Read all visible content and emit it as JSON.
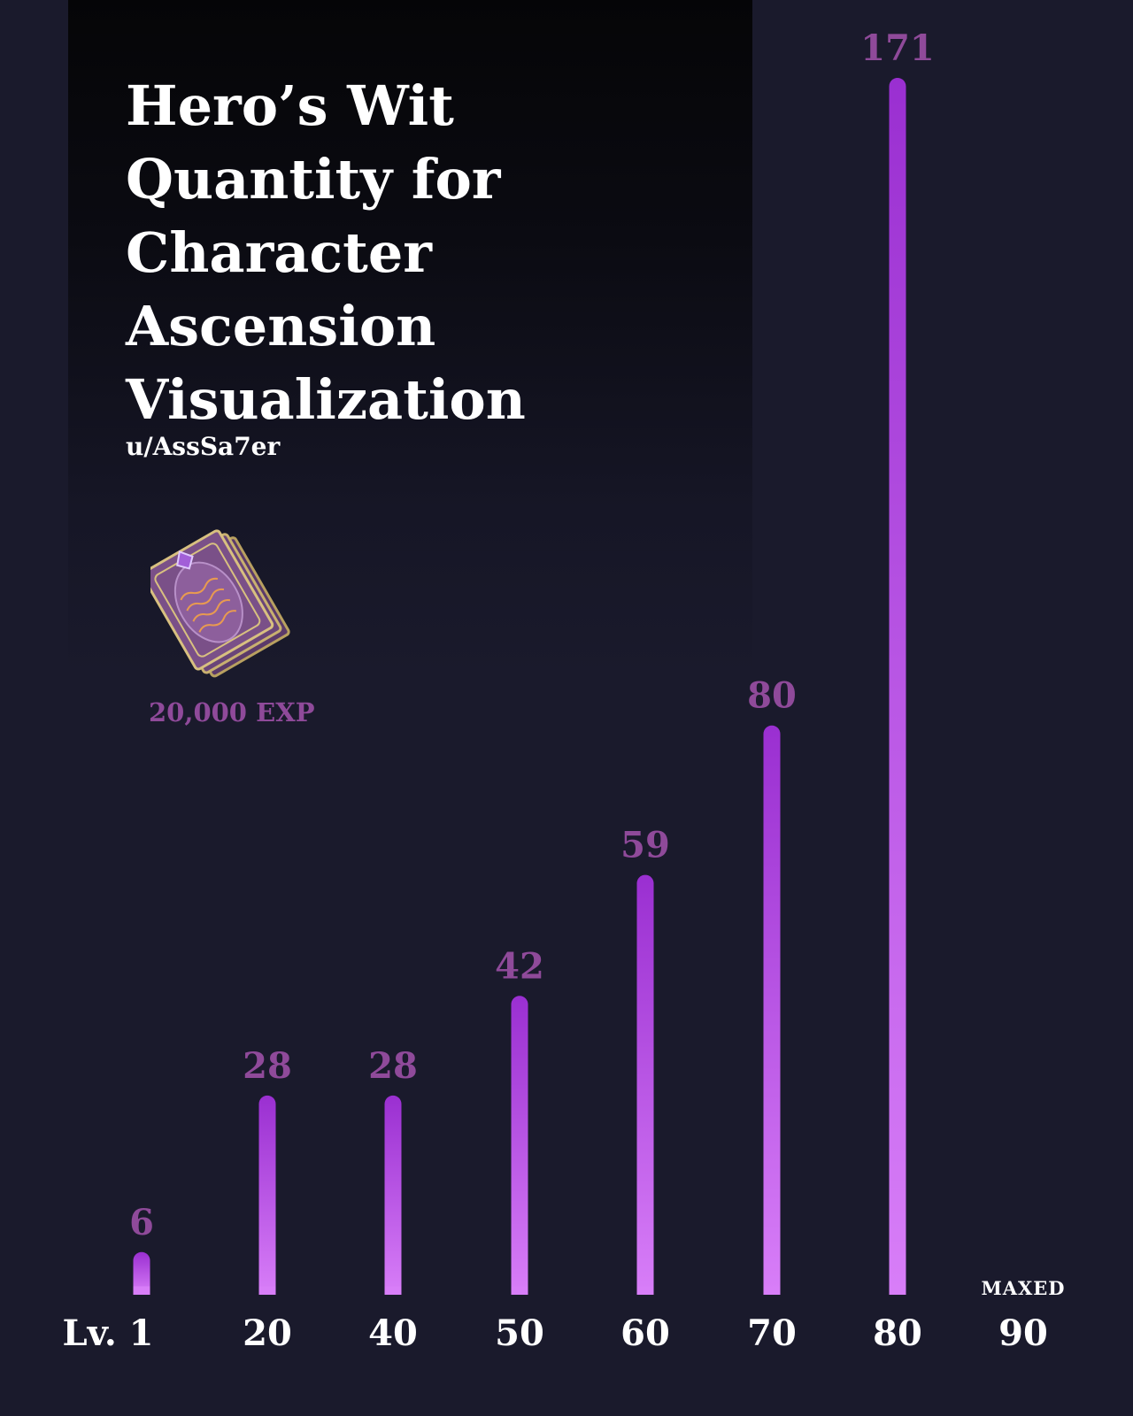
{
  "header": {
    "title": "Hero’s Wit Quantity for Character Ascension Visualization",
    "author": "u/AssSa7er"
  },
  "item": {
    "icon": "heros-wit-book-icon",
    "label": "20,000 EXP"
  },
  "colors": {
    "background": "#1a1a2c",
    "bar_top": "#9a2fd1",
    "bar_bottom": "#d87ef8",
    "value_label": "#8f4a9a",
    "text": "#ffffff"
  },
  "chart_data": {
    "type": "bar",
    "title": "Hero’s Wit Quantity for Character Ascension Visualization",
    "categories": [
      "Lv. 1",
      "20",
      "40",
      "50",
      "60",
      "70",
      "80",
      "90"
    ],
    "values": [
      6,
      28,
      28,
      42,
      59,
      80,
      171,
      null
    ],
    "data_labels": [
      "6",
      "28",
      "28",
      "42",
      "59",
      "80",
      "171",
      ""
    ],
    "annotations": [
      {
        "category": "90",
        "text": "MAXED"
      }
    ],
    "ylim": [
      0,
      171
    ],
    "grid": false,
    "legend": "none"
  }
}
